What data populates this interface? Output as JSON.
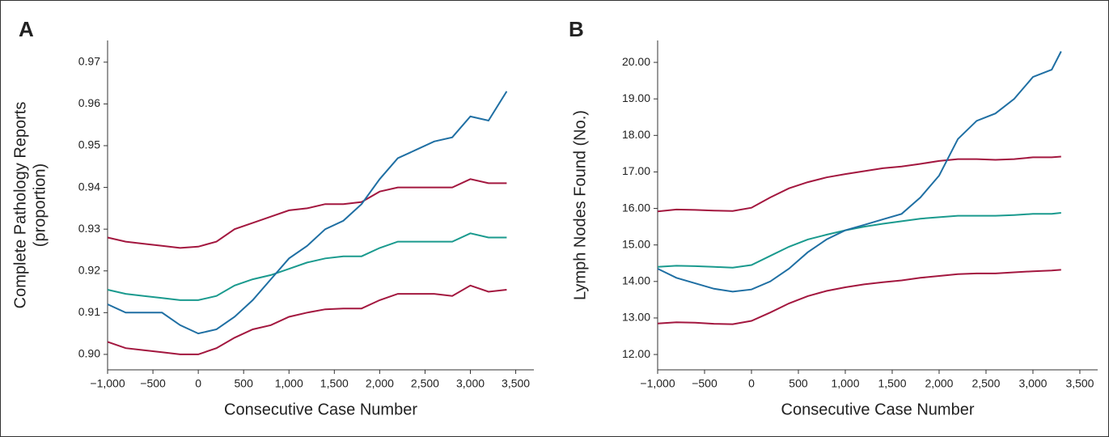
{
  "chart_data": [
    {
      "type": "line",
      "panel_label": "A",
      "xlabel": "Consecutive Case Number",
      "ylabel": [
        "Complete Pathology Reports",
        "(proportion)"
      ],
      "x": [
        -1000,
        -800,
        -600,
        -400,
        -200,
        0,
        200,
        400,
        600,
        800,
        1000,
        1200,
        1400,
        1600,
        1800,
        2000,
        2200,
        2400,
        2600,
        2800,
        3000,
        3200,
        3400
      ],
      "series": [
        {
          "color": "#a3173f",
          "values": [
            0.928,
            0.927,
            0.9265,
            0.926,
            0.9255,
            0.9258,
            0.927,
            0.93,
            0.9315,
            0.933,
            0.9345,
            0.935,
            0.936,
            0.936,
            0.9365,
            0.939,
            0.94,
            0.94,
            0.94,
            0.94,
            0.942,
            0.941,
            0.941
          ]
        },
        {
          "color": "#a3173f",
          "values": [
            0.903,
            0.9015,
            0.901,
            0.9005,
            0.9,
            0.9,
            0.9015,
            0.904,
            0.906,
            0.907,
            0.909,
            0.91,
            0.9108,
            0.911,
            0.911,
            0.913,
            0.9145,
            0.9145,
            0.9145,
            0.914,
            0.9165,
            0.915,
            0.9155
          ]
        },
        {
          "color": "#1a9a8e",
          "values": [
            0.9155,
            0.9145,
            0.914,
            0.9135,
            0.913,
            0.913,
            0.914,
            0.9165,
            0.918,
            0.919,
            0.9205,
            0.922,
            0.923,
            0.9235,
            0.9235,
            0.9255,
            0.927,
            0.927,
            0.927,
            0.927,
            0.929,
            0.928,
            0.928
          ]
        },
        {
          "color": "#1f6fa3",
          "values": [
            0.912,
            0.91,
            0.91,
            0.91,
            0.907,
            0.905,
            0.906,
            0.909,
            0.913,
            0.918,
            0.923,
            0.926,
            0.93,
            0.932,
            0.936,
            0.942,
            0.947,
            0.949,
            0.951,
            0.952,
            0.957,
            0.956,
            0.963
          ]
        }
      ],
      "xlim": [
        -1000,
        3700
      ],
      "ylim": [
        0.8963,
        0.9752
      ],
      "xticks": [
        {
          "value": -1000,
          "label": "−1,000"
        },
        {
          "value": -500,
          "label": "−500"
        },
        0,
        500,
        {
          "value": 1000,
          "label": "1,000"
        },
        {
          "value": 1500,
          "label": "1,500"
        },
        {
          "value": 2000,
          "label": "2,000"
        },
        {
          "value": 2500,
          "label": "2,500"
        },
        {
          "value": 3000,
          "label": "3,000"
        },
        {
          "value": 3500,
          "label": "3,500"
        }
      ],
      "yticks": [
        {
          "value": 0.9,
          "label": "0.90"
        },
        0.91,
        0.92,
        0.93,
        0.94,
        0.95,
        0.96,
        0.97
      ]
    },
    {
      "type": "line",
      "panel_label": "B",
      "xlabel": "Consecutive Case Number",
      "ylabel": [
        "Lymph Nodes Found (No.)"
      ],
      "x": [
        -1000,
        -800,
        -600,
        -400,
        -200,
        0,
        200,
        400,
        600,
        800,
        1000,
        1200,
        1400,
        1600,
        1800,
        2000,
        2200,
        2400,
        2600,
        2800,
        3000,
        3200,
        3300
      ],
      "series": [
        {
          "color": "#a3173f",
          "values": [
            15.92,
            15.97,
            15.96,
            15.94,
            15.93,
            16.02,
            16.3,
            16.55,
            16.72,
            16.85,
            16.94,
            17.02,
            17.1,
            17.15,
            17.22,
            17.3,
            17.35,
            17.35,
            17.33,
            17.35,
            17.4,
            17.4,
            17.42
          ]
        },
        {
          "color": "#a3173f",
          "values": [
            12.85,
            12.88,
            12.87,
            12.84,
            12.83,
            12.92,
            13.15,
            13.4,
            13.6,
            13.74,
            13.84,
            13.92,
            13.98,
            14.03,
            14.1,
            14.15,
            14.2,
            14.22,
            14.22,
            14.25,
            14.28,
            14.3,
            14.32
          ]
        },
        {
          "color": "#1a9a8e",
          "values": [
            14.4,
            14.43,
            14.42,
            14.4,
            14.38,
            14.45,
            14.7,
            14.95,
            15.15,
            15.28,
            15.4,
            15.5,
            15.58,
            15.65,
            15.72,
            15.76,
            15.8,
            15.8,
            15.8,
            15.82,
            15.85,
            15.85,
            15.88
          ]
        },
        {
          "color": "#1f6fa3",
          "values": [
            14.35,
            14.1,
            13.95,
            13.8,
            13.72,
            13.78,
            14.0,
            14.35,
            14.8,
            15.15,
            15.4,
            15.55,
            15.7,
            15.85,
            16.3,
            16.9,
            17.9,
            18.4,
            18.6,
            19.0,
            19.6,
            19.8,
            20.3
          ]
        }
      ],
      "xlim": [
        -1000,
        3690
      ],
      "ylim": [
        11.58,
        20.6
      ],
      "xticks": [
        {
          "value": -1000,
          "label": "−1,000"
        },
        {
          "value": -500,
          "label": "−500"
        },
        0,
        500,
        {
          "value": 1000,
          "label": "1,000"
        },
        {
          "value": 1500,
          "label": "1,500"
        },
        {
          "value": 2000,
          "label": "2,000"
        },
        {
          "value": 2500,
          "label": "2,500"
        },
        {
          "value": 3000,
          "label": "3,000"
        },
        {
          "value": 3500,
          "label": "3,500"
        }
      ],
      "yticks": [
        {
          "value": 12,
          "label": "12.00"
        },
        {
          "value": 13,
          "label": "13.00"
        },
        {
          "value": 14,
          "label": "14.00"
        },
        {
          "value": 15,
          "label": "15.00"
        },
        {
          "value": 16,
          "label": "16.00"
        },
        {
          "value": 17,
          "label": "17.00"
        },
        {
          "value": 18,
          "label": "18.00"
        },
        {
          "value": 19,
          "label": "19.00"
        },
        {
          "value": 20,
          "label": "20.00"
        }
      ]
    }
  ]
}
